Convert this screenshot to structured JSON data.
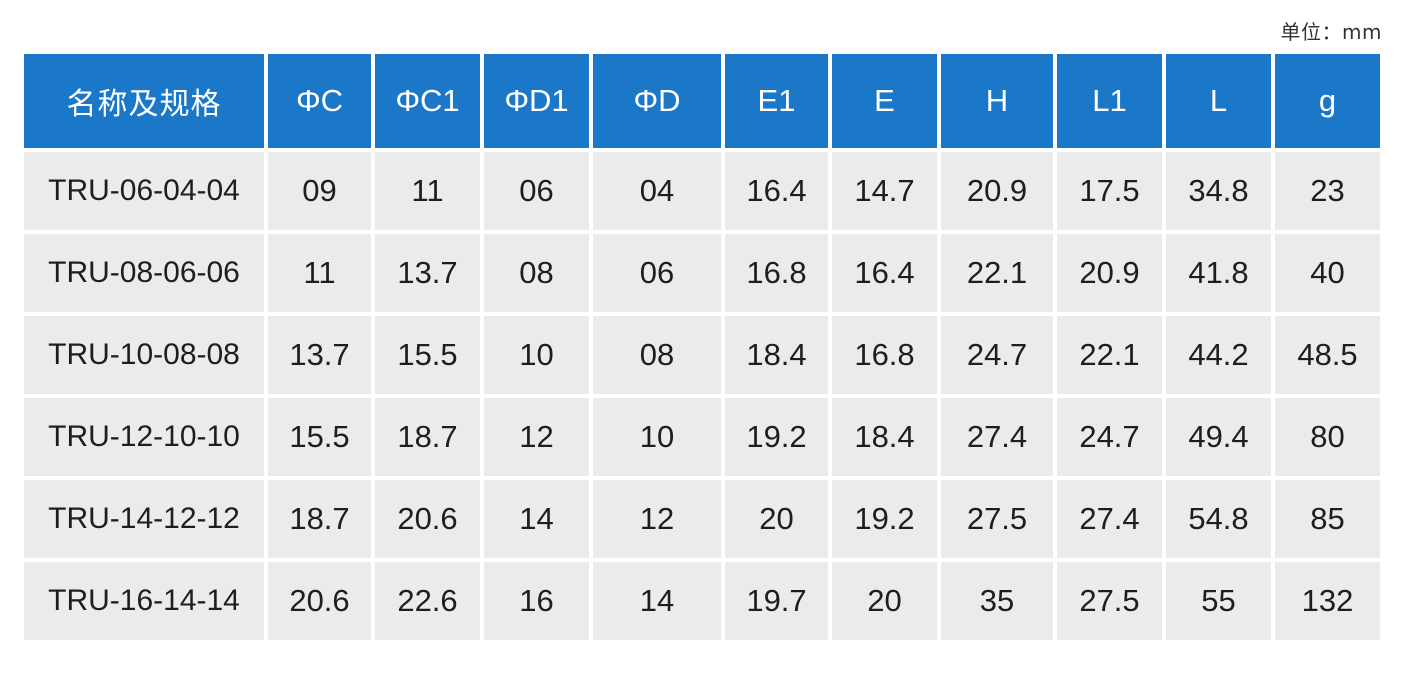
{
  "unit_label": "单位：mm",
  "table": {
    "headers": [
      "名称及规格",
      "ΦC",
      "ΦC1",
      "ΦD1",
      "ΦD",
      "E1",
      "E",
      "H",
      "L1",
      "L",
      "g"
    ],
    "rows": [
      [
        "TRU-06-04-04",
        "09",
        "11",
        "06",
        "04",
        "16.4",
        "14.7",
        "20.9",
        "17.5",
        "34.8",
        "23"
      ],
      [
        "TRU-08-06-06",
        "11",
        "13.7",
        "08",
        "06",
        "16.8",
        "16.4",
        "22.1",
        "20.9",
        "41.8",
        "40"
      ],
      [
        "TRU-10-08-08",
        "13.7",
        "15.5",
        "10",
        "08",
        "18.4",
        "16.8",
        "24.7",
        "22.1",
        "44.2",
        "48.5"
      ],
      [
        "TRU-12-10-10",
        "15.5",
        "18.7",
        "12",
        "10",
        "19.2",
        "18.4",
        "27.4",
        "24.7",
        "49.4",
        "80"
      ],
      [
        "TRU-14-12-12",
        "18.7",
        "20.6",
        "14",
        "12",
        "20",
        "19.2",
        "27.5",
        "27.4",
        "54.8",
        "85"
      ],
      [
        "TRU-16-14-14",
        "20.6",
        "22.6",
        "16",
        "14",
        "19.7",
        "20",
        "35",
        "27.5",
        "55",
        "132"
      ]
    ]
  },
  "colors": {
    "header_bg": "#1b78c8",
    "header_text": "#ffffff",
    "cell_bg": "#ebebeb",
    "cell_text": "#1e1e1e"
  }
}
